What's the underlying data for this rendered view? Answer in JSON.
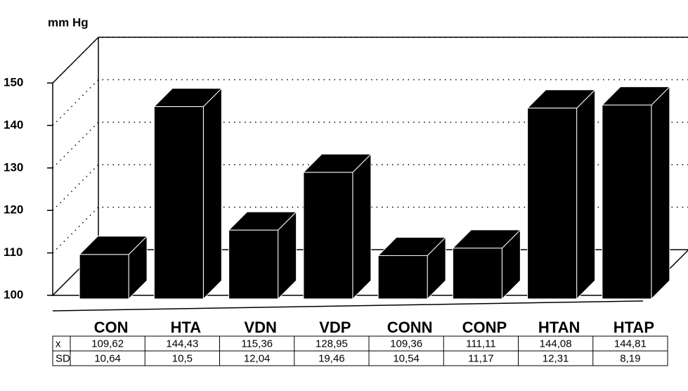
{
  "chart_data": {
    "type": "bar3d",
    "y_label": "mm Hg",
    "categories": [
      "CON",
      "HTA",
      "VDN",
      "VDP",
      "CONN",
      "CONP",
      "HTAN",
      "HTAP"
    ],
    "values": [
      109.62,
      144.43,
      115.36,
      128.95,
      109.36,
      111.11,
      144.08,
      144.81
    ],
    "value_labels": [
      "109,62",
      "144,43",
      "115,36",
      "128,95",
      "109,36",
      "111,11",
      "144,08",
      "144,81"
    ],
    "color": "#000000",
    "ylim": [
      100,
      150
    ],
    "yticks": [
      100,
      110,
      120,
      130,
      140,
      150
    ],
    "grid": true,
    "table": {
      "row_labels": [
        "x",
        "SD"
      ],
      "sd": [
        "10,64",
        "10,5",
        "12,04",
        "19,46",
        "10,54",
        "11,17",
        "12,31",
        "8,19"
      ]
    }
  }
}
